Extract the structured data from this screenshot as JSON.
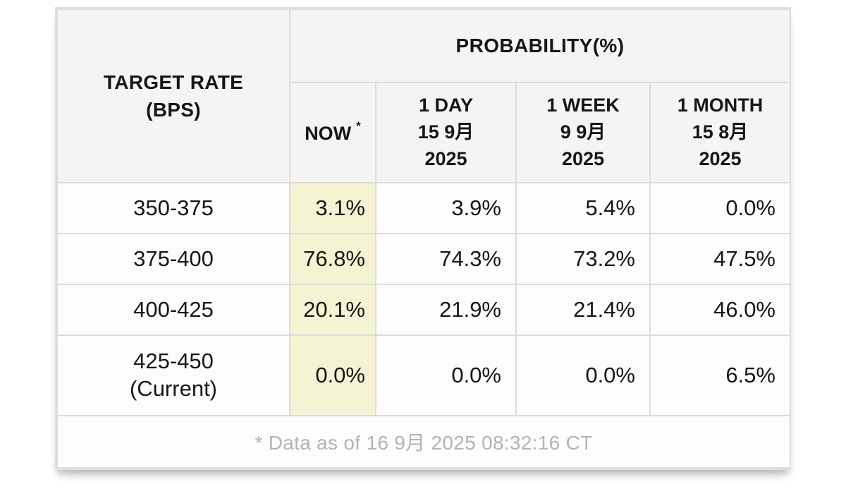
{
  "table": {
    "corner_header": "TARGET RATE\n(BPS)",
    "probability_header": "PROBABILITY(%)",
    "columns": [
      {
        "title": "NOW",
        "sup": "*"
      },
      {
        "title": "1 DAY\n15 9月\n2025"
      },
      {
        "title": "1 WEEK\n9 9月\n2025"
      },
      {
        "title": "1 MONTH\n15 8月\n2025"
      }
    ],
    "rows": [
      {
        "label": "350-375",
        "values": [
          "3.1%",
          "3.9%",
          "5.4%",
          "0.0%"
        ]
      },
      {
        "label": "375-400",
        "values": [
          "76.8%",
          "74.3%",
          "73.2%",
          "47.5%"
        ]
      },
      {
        "label": "400-425",
        "values": [
          "20.1%",
          "21.9%",
          "21.4%",
          "46.0%"
        ]
      },
      {
        "label": "425-450\n(Current)",
        "values": [
          "0.0%",
          "0.0%",
          "0.0%",
          "6.5%"
        ]
      }
    ],
    "footnote": "* Data as of 16 9月 2025 08:32:16 CT"
  },
  "colors": {
    "now_highlight": "#f4f4d2",
    "header_background": "#f4f4f2",
    "border": "#dcdcdc",
    "footnote_text": "#b3b3b3",
    "text": "#161616"
  },
  "chart_data": {
    "type": "table",
    "title": "PROBABILITY(%)",
    "row_label_header": "TARGET RATE (BPS)",
    "categories": [
      "350-375",
      "375-400",
      "400-425",
      "425-450 (Current)"
    ],
    "series": [
      {
        "name": "NOW *",
        "values": [
          3.1,
          76.8,
          20.1,
          0.0
        ]
      },
      {
        "name": "1 DAY 15 9月 2025",
        "values": [
          3.9,
          74.3,
          21.9,
          0.0
        ]
      },
      {
        "name": "1 WEEK 9 9月 2025",
        "values": [
          5.4,
          73.2,
          21.4,
          0.0
        ]
      },
      {
        "name": "1 MONTH 15 8月 2025",
        "values": [
          0.0,
          47.5,
          46.0,
          6.5
        ]
      }
    ],
    "footnote": "* Data as of 16 9月 2025 08:32:16 CT",
    "highlighted_column": "NOW *"
  }
}
